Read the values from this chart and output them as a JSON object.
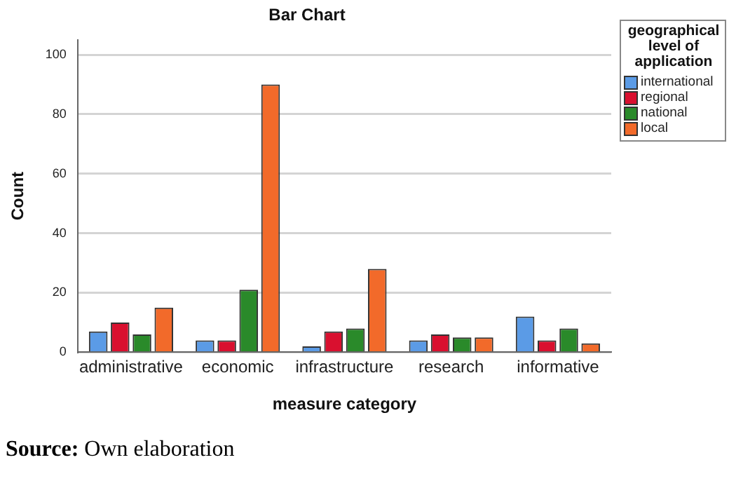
{
  "chart_data": {
    "type": "bar",
    "title": "Bar Chart",
    "xlabel": "measure category",
    "ylabel": "Count",
    "legend_title": "geographical level of application",
    "categories": [
      "administrative",
      "economic",
      "infrastructure",
      "research",
      "informative"
    ],
    "series": [
      {
        "name": "international",
        "color": "#5b9be6",
        "values": [
          7,
          4,
          2,
          4,
          12
        ]
      },
      {
        "name": "regional",
        "color": "#d9102f",
        "values": [
          10,
          4,
          7,
          6,
          4
        ]
      },
      {
        "name": "national",
        "color": "#2a8a2a",
        "values": [
          6,
          21,
          8,
          5,
          8
        ]
      },
      {
        "name": "local",
        "color": "#f26a2a",
        "values": [
          15,
          90,
          28,
          5,
          3
        ]
      }
    ],
    "ylim": [
      0,
      105
    ],
    "yticks": [
      0,
      20,
      40,
      60,
      80,
      100
    ],
    "grid": "y",
    "legend": "top right",
    "annotations": [
      "Source: Own elaboration"
    ]
  }
}
